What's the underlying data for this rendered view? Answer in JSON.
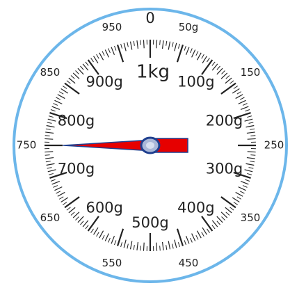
{
  "dial": {
    "unit_label": "1kg",
    "max_value": 1000,
    "reading_value": 750,
    "rim_color": "#6cb6ea",
    "needle_color": "#e60000",
    "needle_outline_color": "#1f3f8f",
    "hub_color": "#aab8d8",
    "tick_color": "#222222",
    "outer_labels": [
      {
        "text": "0",
        "value": 0,
        "big": true
      },
      {
        "text": "50g",
        "value": 50
      },
      {
        "text": "150",
        "value": 150
      },
      {
        "text": "250",
        "value": 250
      },
      {
        "text": "350",
        "value": 350
      },
      {
        "text": "450",
        "value": 450
      },
      {
        "text": "550",
        "value": 550
      },
      {
        "text": "650",
        "value": 650
      },
      {
        "text": "750",
        "value": 750
      },
      {
        "text": "850",
        "value": 850
      },
      {
        "text": "950",
        "value": 950
      }
    ],
    "inner_labels": [
      {
        "text": "100g",
        "value": 100
      },
      {
        "text": "200g",
        "value": 200
      },
      {
        "text": "300g",
        "value": 300
      },
      {
        "text": "400g",
        "value": 400
      },
      {
        "text": "500g",
        "value": 500
      },
      {
        "text": "600g",
        "value": 600
      },
      {
        "text": "700g",
        "value": 700
      },
      {
        "text": "800g",
        "value": 800
      },
      {
        "text": "900g",
        "value": 900
      }
    ]
  }
}
